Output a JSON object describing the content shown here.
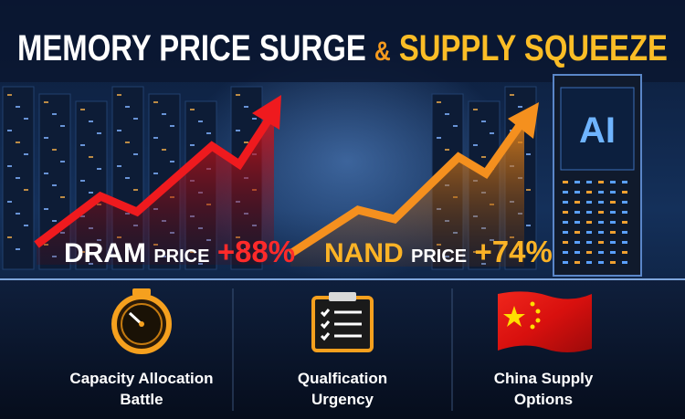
{
  "header": {
    "title_main": "MEMORY PRICE SURGE",
    "title_amp": "&",
    "title_accent": "SUPPLY SQUEEZE"
  },
  "stats": [
    {
      "name": "DRAM",
      "unit": "PRICE",
      "change": "+88%"
    },
    {
      "name": "NAND",
      "unit": "PRICE",
      "change": "+74%"
    }
  ],
  "server_label": "AI",
  "items": [
    {
      "lines": [
        "Capacity Allocation",
        "Battle"
      ]
    },
    {
      "lines": [
        "Qualfication",
        "Urgency"
      ]
    },
    {
      "lines": [
        "China Supply",
        "Options"
      ]
    }
  ]
}
